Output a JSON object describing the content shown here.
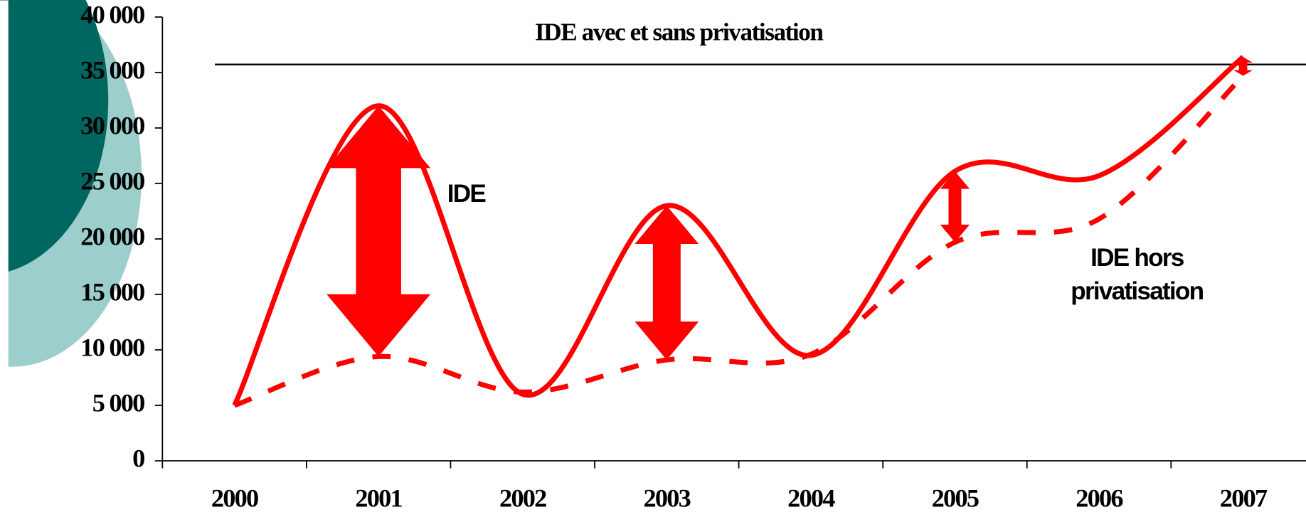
{
  "chart_data": {
    "type": "line",
    "title": "IDE avec et sans privatisation",
    "categories": [
      "2000",
      "2001",
      "2002",
      "2003",
      "2004",
      "2005",
      "2006",
      "2007"
    ],
    "series": [
      {
        "name": "IDE",
        "color": "#ff0000",
        "style": "solid",
        "values": [
          5000,
          32000,
          6000,
          23000,
          9500,
          26100,
          25700,
          36400
        ]
      },
      {
        "name": "IDE hors privatisation",
        "color": "#ff0000",
        "style": "dashed",
        "values": [
          5000,
          9400,
          6200,
          9100,
          9600,
          19700,
          21800,
          34700
        ]
      }
    ],
    "ylim": [
      0,
      40000
    ],
    "yticks": [
      {
        "value": 0,
        "label": "0"
      },
      {
        "value": 5000,
        "label": "5 000"
      },
      {
        "value": 10000,
        "label": "10 000"
      },
      {
        "value": 15000,
        "label": "15 000"
      },
      {
        "value": 20000,
        "label": "20 000"
      },
      {
        "value": 25000,
        "label": "25 000"
      },
      {
        "value": 30000,
        "label": "30 000"
      },
      {
        "value": 35000,
        "label": "35 000"
      },
      {
        "value": 40000,
        "label": "40 000"
      }
    ]
  }
}
